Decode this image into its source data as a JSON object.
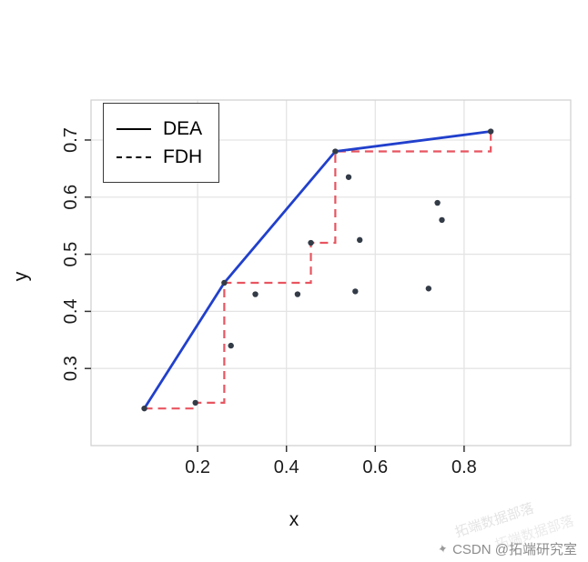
{
  "chart_data": {
    "type": "scatter",
    "title": "",
    "xlabel": "x",
    "ylabel": "y",
    "xlim": [
      -0.04,
      1.04
    ],
    "ylim": [
      0.165,
      0.77
    ],
    "xticks": [
      0.2,
      0.4,
      0.6,
      0.8
    ],
    "yticks": [
      0.3,
      0.4,
      0.5,
      0.6,
      0.7
    ],
    "grid": true,
    "legend": {
      "position": "top-left",
      "entries": [
        {
          "label": "DEA",
          "line": "solid"
        },
        {
          "label": "FDH",
          "line": "dashed"
        }
      ]
    },
    "points": [
      [
        0.08,
        0.23
      ],
      [
        0.195,
        0.24
      ],
      [
        0.275,
        0.34
      ],
      [
        0.26,
        0.45
      ],
      [
        0.33,
        0.43
      ],
      [
        0.425,
        0.43
      ],
      [
        0.455,
        0.52
      ],
      [
        0.51,
        0.68
      ],
      [
        0.54,
        0.635
      ],
      [
        0.565,
        0.525
      ],
      [
        0.555,
        0.435
      ],
      [
        0.72,
        0.44
      ],
      [
        0.74,
        0.59
      ],
      [
        0.75,
        0.56
      ],
      [
        0.86,
        0.715
      ]
    ],
    "series": [
      {
        "name": "DEA",
        "style": "solid",
        "color": "#2140cc",
        "points": [
          [
            0.08,
            0.23
          ],
          [
            0.26,
            0.45
          ],
          [
            0.51,
            0.68
          ],
          [
            0.86,
            0.715
          ]
        ]
      },
      {
        "name": "FDH",
        "style": "dashed",
        "color": "#e85560",
        "points": [
          [
            0.08,
            0.23
          ],
          [
            0.195,
            0.23
          ],
          [
            0.195,
            0.24
          ],
          [
            0.26,
            0.24
          ],
          [
            0.26,
            0.45
          ],
          [
            0.455,
            0.45
          ],
          [
            0.455,
            0.52
          ],
          [
            0.51,
            0.52
          ],
          [
            0.51,
            0.68
          ],
          [
            0.86,
            0.68
          ],
          [
            0.86,
            0.715
          ]
        ]
      }
    ],
    "colors": {
      "points": "#333b47",
      "grid": "#e4e4e4",
      "panel_border": "#cfcfcf",
      "axis_text": "#1a1a1a"
    }
  },
  "watermarks": {
    "diagonal": "拓端数据部落",
    "credit": "CSDN @拓端研究室",
    "logo_glyph": "✦"
  }
}
